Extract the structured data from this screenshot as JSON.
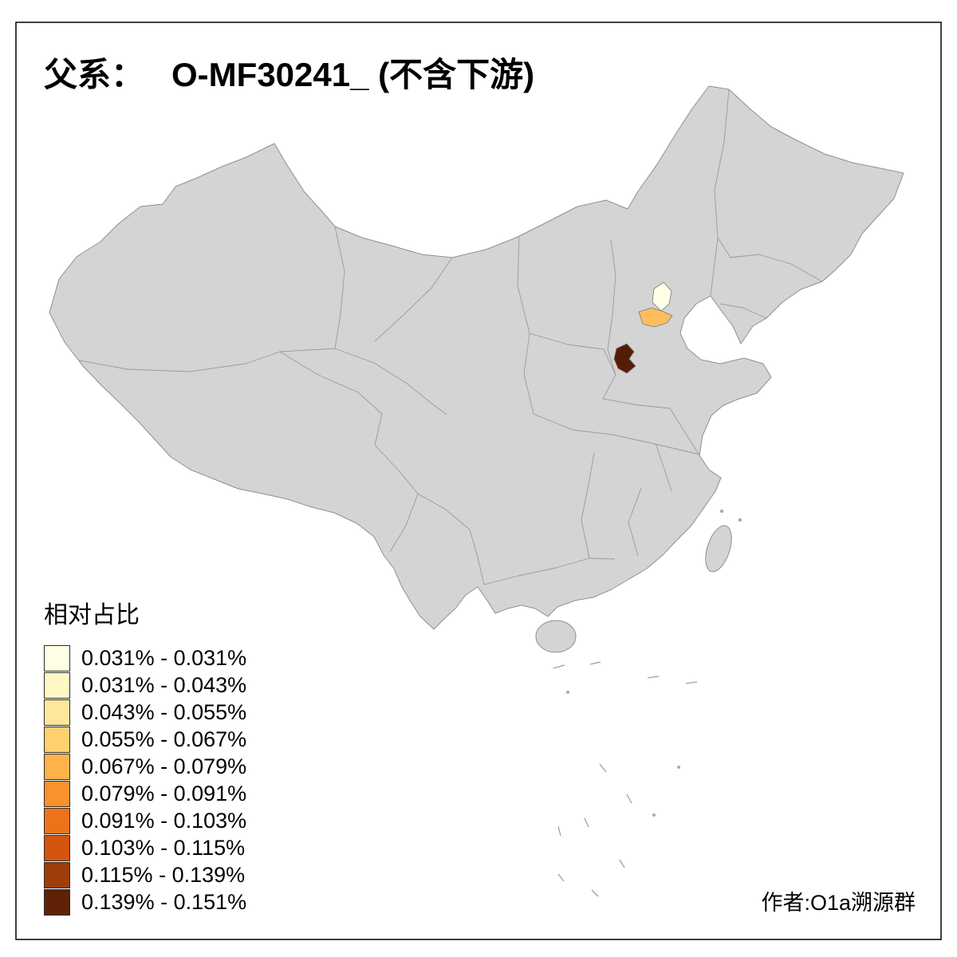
{
  "title": {
    "prefix": "父系：",
    "main": "O-MF30241_ (不含下游)"
  },
  "legend": {
    "title": "相对占比",
    "classes": [
      {
        "label": "0.031% - 0.031%",
        "color": "#FFFFE5"
      },
      {
        "label": "0.031% - 0.043%",
        "color": "#FFF8C4"
      },
      {
        "label": "0.043% - 0.055%",
        "color": "#FEE79B"
      },
      {
        "label": "0.055% - 0.067%",
        "color": "#FED16E"
      },
      {
        "label": "0.067% - 0.079%",
        "color": "#FEB34A"
      },
      {
        "label": "0.079% - 0.091%",
        "color": "#F9912D"
      },
      {
        "label": "0.091% - 0.103%",
        "color": "#ED731B"
      },
      {
        "label": "0.103% - 0.115%",
        "color": "#D4550E"
      },
      {
        "label": "0.115% - 0.139%",
        "color": "#9E3D0A"
      },
      {
        "label": "0.139% - 0.151%",
        "color": "#5F2206"
      }
    ]
  },
  "attribution": "作者:O1a溯源群",
  "map": {
    "base_fill": "#D4D4D4",
    "highlights": [
      {
        "color": "#FFFFE5"
      },
      {
        "color": "#FDBE5C"
      },
      {
        "color": "#541E06"
      }
    ]
  }
}
